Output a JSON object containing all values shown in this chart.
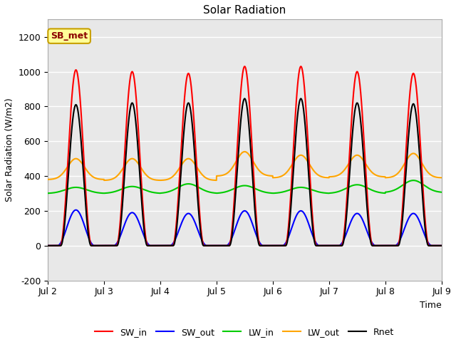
{
  "title": "Solar Radiation",
  "ylabel": "Solar Radiation (W/m2)",
  "xlabel": "Time",
  "ylim": [
    -200,
    1300
  ],
  "yticks": [
    -200,
    0,
    200,
    400,
    600,
    800,
    1000,
    1200
  ],
  "xtick_labels": [
    "Jul 2",
    "Jul 3",
    "Jul 4",
    "Jul 5",
    "Jul 6",
    "Jul 7",
    "Jul 8",
    "Jul 9"
  ],
  "fig_bg": "#ffffff",
  "plot_bg": "#e8e8e8",
  "grid_color": "#ffffff",
  "label_box_text": "SB_met",
  "label_box_bg": "#ffff99",
  "label_box_edge": "#c8a000",
  "label_box_text_color": "#8b0000",
  "series": {
    "SW_in": {
      "color": "#ff0000",
      "lw": 1.5
    },
    "SW_out": {
      "color": "#0000ff",
      "lw": 1.5
    },
    "LW_in": {
      "color": "#00cc00",
      "lw": 1.5
    },
    "LW_out": {
      "color": "#ffa500",
      "lw": 1.5
    },
    "Rnet": {
      "color": "#000000",
      "lw": 1.5
    }
  },
  "num_days": 7,
  "SW_in_peak": [
    1010,
    1000,
    990,
    1030,
    1030,
    1000,
    990
  ],
  "SW_out_peak": [
    205,
    190,
    185,
    200,
    200,
    185,
    185
  ],
  "LW_in_base": [
    300,
    300,
    300,
    300,
    300,
    300,
    305
  ],
  "LW_in_peak": [
    335,
    340,
    355,
    345,
    335,
    350,
    375
  ],
  "LW_out_base": [
    380,
    375,
    375,
    400,
    390,
    395,
    390
  ],
  "LW_out_peak": [
    500,
    500,
    500,
    540,
    520,
    520,
    530
  ],
  "Rnet_peak": [
    810,
    820,
    820,
    845,
    845,
    820,
    815
  ]
}
